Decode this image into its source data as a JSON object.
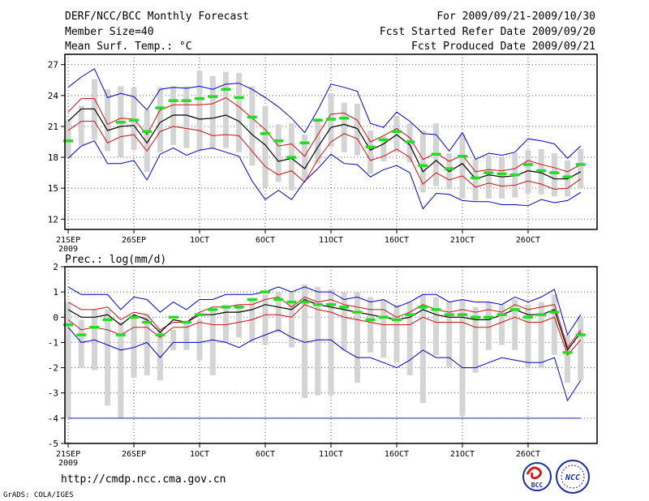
{
  "header": {
    "title": "DERF/NCC/BCC Monthly Forecast",
    "member_size": "Member Size=40",
    "variable": "Mean Surf. Temp.: °C",
    "period": "For 2009/09/21-2009/10/30",
    "refer_date": "Fcst Started Refer Date 2009/09/20",
    "produced_date": "Fcst Produced Date 2009/09/21"
  },
  "precip_label": "Prec.: log(mm/d)",
  "footer": {
    "url": "http://cmdp.ncc.cma.gov.cn",
    "credit": "GrADS: COLA/IGES",
    "logo_bcc": "BCC",
    "logo_ncc": "NCC"
  },
  "x_ticks": [
    {
      "day": 1,
      "label": "21SEP",
      "sub": "2009"
    },
    {
      "day": 6,
      "label": "26SEP"
    },
    {
      "day": 11,
      "label": "1OCT"
    },
    {
      "day": 16,
      "label": "6OCT"
    },
    {
      "day": 21,
      "label": "11OCT"
    },
    {
      "day": 26,
      "label": "16OCT"
    },
    {
      "day": 31,
      "label": "21OCT"
    },
    {
      "day": 36,
      "label": "26OCT"
    }
  ],
  "colors": {
    "frame": "#000000",
    "grid": "#555555",
    "box": "#d4d4d4",
    "envelope": "#0000cc",
    "spread": "#cc1111",
    "mean": "#000000",
    "observed": "#22dd22",
    "baseline": "#2233aa"
  },
  "chart_data": [
    {
      "type": "line",
      "title": "Mean Surf. Temp.: °C",
      "x": [
        1,
        2,
        3,
        4,
        5,
        6,
        7,
        8,
        9,
        10,
        11,
        12,
        13,
        14,
        15,
        16,
        17,
        18,
        19,
        20,
        21,
        22,
        23,
        24,
        25,
        26,
        27,
        28,
        29,
        30,
        31,
        32,
        33,
        34,
        35,
        36,
        37,
        38,
        39,
        40
      ],
      "ylim": [
        11,
        28
      ],
      "yticks": [
        12,
        15,
        18,
        21,
        24,
        27
      ],
      "series": [
        {
          "name": "ensemble max",
          "values": [
            24.8,
            25.8,
            26.6,
            23.8,
            24.2,
            23.9,
            22.6,
            24.6,
            24.8,
            24.7,
            24.9,
            24.6,
            25.1,
            25.2,
            24.6,
            23.8,
            22.9,
            21.8,
            20.4,
            22.6,
            25.1,
            24.8,
            24.4,
            21.3,
            20.9,
            22.4,
            21.5,
            20.3,
            20.2,
            18.6,
            20.4,
            17.8,
            18.4,
            18.2,
            18.5,
            19.8,
            19.6,
            19.3,
            17.9,
            19.1
          ]
        },
        {
          "name": "upper spread",
          "values": [
            22.4,
            23.7,
            23.7,
            21.2,
            21.8,
            21.7,
            20.2,
            22.6,
            23.1,
            23.1,
            23.1,
            23.2,
            23.8,
            22.9,
            21.8,
            20.7,
            19.1,
            19.3,
            18.1,
            20.2,
            22.2,
            22.3,
            21.6,
            19.5,
            20.1,
            20.8,
            19.9,
            17.8,
            18.4,
            17.6,
            18.2,
            16.6,
            16.8,
            16.7,
            16.9,
            17.7,
            17.3,
            17.0,
            16.6,
            17.3
          ]
        },
        {
          "name": "ensemble mean",
          "values": [
            21.5,
            22.7,
            22.7,
            20.6,
            21.0,
            21.1,
            19.4,
            21.4,
            22.1,
            22.1,
            21.7,
            21.8,
            22.1,
            21.5,
            20.2,
            19.2,
            17.6,
            17.9,
            16.9,
            19.0,
            20.9,
            21.2,
            20.8,
            18.7,
            19.3,
            20.2,
            19.2,
            16.6,
            17.7,
            16.6,
            17.4,
            15.9,
            16.3,
            16.1,
            16.2,
            16.7,
            16.5,
            15.9,
            15.9,
            16.6
          ]
        },
        {
          "name": "lower spread",
          "values": [
            20.6,
            21.5,
            21.5,
            19.4,
            20.0,
            20.2,
            18.6,
            20.5,
            21.0,
            20.8,
            20.6,
            20.1,
            20.2,
            20.1,
            18.6,
            17.1,
            16.3,
            16.7,
            15.6,
            17.8,
            19.5,
            20.3,
            19.8,
            17.7,
            18.1,
            18.8,
            18.0,
            15.4,
            16.5,
            15.8,
            16.2,
            15.1,
            15.5,
            15.2,
            15.3,
            15.7,
            15.4,
            14.9,
            15.0,
            15.9
          ]
        },
        {
          "name": "ensemble min",
          "values": [
            17.9,
            19.1,
            19.6,
            17.4,
            17.4,
            17.7,
            15.8,
            18.3,
            18.9,
            18.2,
            18.7,
            18.9,
            18.5,
            18.1,
            15.7,
            13.9,
            14.8,
            13.9,
            15.7,
            16.9,
            18.3,
            17.4,
            17.3,
            16.1,
            16.8,
            17.2,
            16.5,
            13.0,
            14.5,
            14.4,
            13.8,
            13.7,
            13.7,
            13.4,
            13.4,
            13.3,
            13.9,
            13.6,
            13.8,
            14.6
          ]
        }
      ],
      "boxes": {
        "top": [
          21.6,
          23.0,
          25.6,
          24.6,
          24.9,
          24.8,
          22.6,
          24.8,
          24.9,
          24.9,
          26.4,
          25.9,
          26.3,
          26.2,
          24.9,
          23.0,
          21.2,
          21.3,
          20.2,
          21.8,
          24.2,
          23.3,
          23.2,
          20.6,
          20.1,
          22.0,
          21.3,
          20.6,
          21.3,
          18.4,
          20.2,
          17.8,
          18.2,
          18.0,
          18.4,
          18.7,
          18.8,
          18.4,
          17.7,
          18.8
        ],
        "bottom": [
          17.9,
          19.2,
          19.7,
          18.6,
          18.0,
          18.7,
          16.6,
          18.5,
          19.2,
          18.9,
          18.6,
          18.9,
          18.9,
          18.5,
          17.2,
          15.1,
          15.6,
          14.8,
          15.8,
          17.4,
          19.0,
          18.5,
          18.2,
          16.4,
          17.6,
          18.5,
          17.5,
          14.6,
          15.2,
          14.9,
          14.0,
          13.8,
          14.0,
          14.0,
          14.1,
          14.5,
          14.4,
          14.2,
          14.2,
          15.0
        ]
      },
      "observed": [
        19.6,
        null,
        null,
        null,
        21.4,
        21.6,
        20.5,
        22.8,
        23.5,
        23.5,
        23.7,
        23.9,
        24.6,
        23.8,
        21.9,
        20.3,
        19.6,
        18.0,
        19.4,
        21.6,
        21.7,
        21.8,
        null,
        19.0,
        19.7,
        20.5,
        19.5,
        17.2,
        18.3,
        16.9,
        18.1,
        16.0,
        16.5,
        16.4,
        16.3,
        17.3,
        16.7,
        16.5,
        16.1,
        17.3
      ]
    },
    {
      "type": "line",
      "title": "Prec.: log(mm/d)",
      "x": [
        1,
        2,
        3,
        4,
        5,
        6,
        7,
        8,
        9,
        10,
        11,
        12,
        13,
        14,
        15,
        16,
        17,
        18,
        19,
        20,
        21,
        22,
        23,
        24,
        25,
        26,
        27,
        28,
        29,
        30,
        31,
        32,
        33,
        34,
        35,
        36,
        37,
        38,
        39,
        40
      ],
      "ylim": [
        -5,
        2
      ],
      "yticks": [
        -5,
        -4,
        -3,
        -2,
        -1,
        0,
        1,
        2
      ],
      "baseline": -4,
      "series": [
        {
          "name": "ensemble max",
          "values": [
            1.2,
            0.9,
            0.9,
            0.9,
            0.3,
            0.8,
            0.7,
            0.2,
            0.6,
            0.3,
            0.7,
            0.7,
            0.9,
            0.9,
            0.9,
            1.0,
            1.2,
            1.0,
            1.2,
            1.0,
            1.0,
            0.7,
            0.8,
            0.6,
            0.7,
            0.4,
            0.6,
            0.9,
            0.9,
            0.6,
            0.7,
            0.6,
            0.6,
            0.5,
            0.8,
            0.6,
            0.8,
            1.1,
            -0.7,
            0.1
          ]
        },
        {
          "name": "upper spread",
          "values": [
            0.6,
            0.3,
            0.3,
            0.4,
            -0.1,
            0.2,
            0.1,
            -0.5,
            -0.2,
            -0.2,
            0.2,
            0.4,
            0.4,
            0.5,
            0.5,
            0.7,
            0.8,
            0.4,
            0.8,
            0.6,
            0.7,
            0.5,
            0.4,
            0.3,
            0.3,
            0.0,
            0.2,
            0.5,
            0.3,
            0.2,
            0.3,
            0.2,
            0.3,
            0.2,
            0.5,
            0.3,
            0.4,
            0.5,
            -1.2,
            -0.5
          ]
        },
        {
          "name": "ensemble mean",
          "values": [
            0.3,
            0.0,
            0.0,
            0.1,
            -0.3,
            0.1,
            -0.1,
            -0.6,
            -0.1,
            -0.2,
            0.1,
            0.1,
            0.2,
            0.2,
            0.3,
            0.5,
            0.4,
            0.3,
            0.7,
            0.5,
            0.4,
            0.3,
            0.2,
            0.1,
            0.0,
            -0.1,
            0.0,
            0.3,
            0.1,
            0.0,
            0.0,
            -0.1,
            -0.1,
            0.1,
            0.3,
            0.1,
            0.1,
            0.3,
            -1.3,
            -0.6
          ]
        },
        {
          "name": "lower spread",
          "values": [
            -0.1,
            -0.5,
            -0.4,
            -0.5,
            -0.7,
            -0.4,
            -0.4,
            -0.8,
            -0.4,
            -0.4,
            -0.2,
            -0.3,
            -0.3,
            -0.2,
            -0.1,
            0.1,
            0.1,
            0.0,
            0.5,
            0.3,
            0.2,
            0.0,
            -0.1,
            -0.2,
            -0.3,
            -0.3,
            -0.3,
            0.0,
            -0.2,
            -0.2,
            -0.2,
            -0.4,
            -0.4,
            -0.2,
            0.0,
            -0.2,
            -0.2,
            0.0,
            -1.5,
            -0.9
          ]
        },
        {
          "name": "ensemble min",
          "values": [
            -0.4,
            -1.0,
            -0.9,
            -1.1,
            -1.3,
            -1.2,
            -1.0,
            -1.6,
            -1.0,
            -1.0,
            -1.0,
            -0.9,
            -1.0,
            -1.2,
            -0.9,
            -0.7,
            -0.5,
            -0.8,
            -1.0,
            -0.9,
            -0.9,
            -1.3,
            -1.6,
            -1.6,
            -1.8,
            -2.0,
            -1.7,
            -1.3,
            -1.6,
            -1.6,
            -2.0,
            -2.0,
            -1.8,
            -1.6,
            -1.7,
            -1.8,
            -1.8,
            -1.6,
            -3.3,
            -2.5
          ]
        }
      ],
      "boxes": {
        "top": [
          0.6,
          -0.1,
          0.3,
          0.3,
          -0.2,
          0.0,
          0.1,
          -0.5,
          -0.5,
          -0.2,
          -0.1,
          0.3,
          0.5,
          0.5,
          0.7,
          0.9,
          1.0,
          1.0,
          1.3,
          1.2,
          1.1,
          1.0,
          1.0,
          0.8,
          0.7,
          0.5,
          0.6,
          0.9,
          0.8,
          0.6,
          0.7,
          0.4,
          0.6,
          0.5,
          0.7,
          0.5,
          0.6,
          0.9,
          -0.7,
          0.0
        ],
        "bottom": [
          -4.0,
          -2.0,
          -2.1,
          -3.5,
          -4.0,
          -2.4,
          -2.3,
          -2.5,
          -1.3,
          -1.3,
          -1.7,
          -2.3,
          -1.0,
          -0.8,
          -1.0,
          -1.1,
          -0.6,
          -1.2,
          -3.2,
          -3.1,
          -3.1,
          -1.3,
          -2.6,
          -1.4,
          -1.6,
          -1.8,
          -2.3,
          -3.4,
          -1.5,
          -2.0,
          -3.9,
          -2.2,
          -1.3,
          -1.1,
          -1.3,
          -2.0,
          -2.0,
          -1.5,
          -2.6,
          -2.5
        ]
      },
      "observed": [
        -0.3,
        -0.7,
        -0.4,
        -0.1,
        -0.7,
        -0.0,
        -0.2,
        -0.7,
        0.0,
        -0.2,
        0.1,
        0.3,
        0.4,
        0.4,
        0.7,
        1.0,
        0.7,
        0.6,
        0.6,
        0.5,
        0.5,
        0.4,
        0.2,
        -0.1,
        0.0,
        -0.1,
        0.1,
        0.4,
        0.3,
        0.1,
        0.1,
        0.0,
        0.0,
        0.1,
        0.3,
        0.0,
        0.1,
        0.2,
        -1.4,
        -0.7
      ]
    }
  ]
}
